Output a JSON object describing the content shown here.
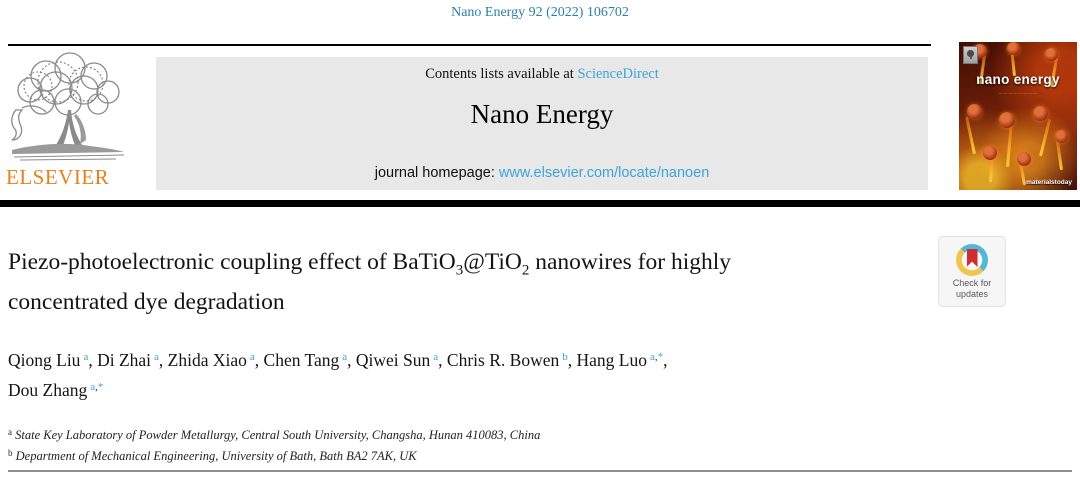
{
  "citation": "Nano Energy 92 (2022) 106702",
  "masthead": {
    "contents_prefix": "Contents lists available at ",
    "sciencedirect_label": "ScienceDirect",
    "journal_name": "Nano Energy",
    "homepage_prefix": "journal homepage: ",
    "homepage_url": "www.elsevier.com/locate/nanoen",
    "publisher": "ELSEVIER"
  },
  "cover": {
    "title": "nano energy",
    "subline": "...............................",
    "footer_brand": "materialstoday"
  },
  "check_badge": {
    "line1": "Check for",
    "line2": "updates"
  },
  "article": {
    "title_segments": [
      {
        "t": "Piezo-photoelectronic coupling effect of BaTiO"
      },
      {
        "t": "3",
        "sub": true
      },
      {
        "t": "@TiO"
      },
      {
        "t": "2",
        "sub": true
      },
      {
        "t": " nanowires for highly"
      },
      {
        "br": true
      },
      {
        "t": "concentrated dye degradation"
      }
    ],
    "authors_line1": [
      {
        "name": "Qiong Liu",
        "sup": "a"
      },
      {
        "name": "Di Zhai",
        "sup": "a"
      },
      {
        "name": "Zhida Xiao",
        "sup": "a"
      },
      {
        "name": "Chen Tang",
        "sup": "a"
      },
      {
        "name": "Qiwei Sun",
        "sup": "a"
      },
      {
        "name": "Chris R. Bowen",
        "sup": "b"
      },
      {
        "name": "Hang Luo",
        "sup": "a,*"
      }
    ],
    "authors_line2": [
      {
        "name": "Dou Zhang",
        "sup": "a,*"
      }
    ],
    "affiliations": [
      {
        "sup": "a",
        "text": "State Key Laboratory of Powder Metallurgy, Central South University, Changsha, Hunan 410083, China"
      },
      {
        "sup": "b",
        "text": "Department of Mechanical Engineering, University of Bath, Bath BA2 7AK, UK"
      }
    ]
  },
  "colors": {
    "citation_teal": "#2d7ea9",
    "link_blue": "#3ba3d8",
    "elsevier_orange": "#e5821e",
    "badge_blue": "#54b7da",
    "badge_yellow": "#f0c54e",
    "badge_red": "#ce2e33"
  }
}
